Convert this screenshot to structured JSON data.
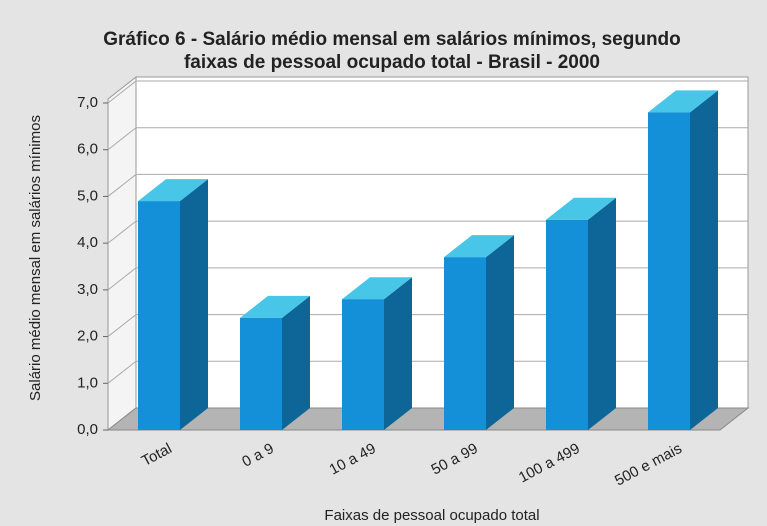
{
  "chart_data": {
    "type": "bar3d",
    "title": [
      "Gráfico 6 - Salário médio mensal em salários mínimos, segundo",
      "faixas de pessoal ocupado total - Brasil - 2000"
    ],
    "x_label": "Faixas de pessoal ocupado total",
    "y_label": "Salário médio mensal em salários mínimos",
    "categories": [
      "Total",
      "0 a 9",
      "10 a 49",
      "50 a 99",
      "100 a 499",
      "500 e mais"
    ],
    "values": [
      4.9,
      2.4,
      2.8,
      3.7,
      4.5,
      6.8
    ],
    "color": "#1490d8",
    "ylim": [
      0,
      7
    ],
    "yticks": [
      {
        "value": 0,
        "label": "0,0"
      },
      {
        "value": 1,
        "label": "1,0"
      },
      {
        "value": 2,
        "label": "2,0"
      },
      {
        "value": 3,
        "label": "3,0"
      },
      {
        "value": 4,
        "label": "4,0"
      },
      {
        "value": 5,
        "label": "5,0"
      },
      {
        "value": 6,
        "label": "6,0"
      },
      {
        "value": 7,
        "label": "7,0"
      }
    ],
    "grid": true
  }
}
